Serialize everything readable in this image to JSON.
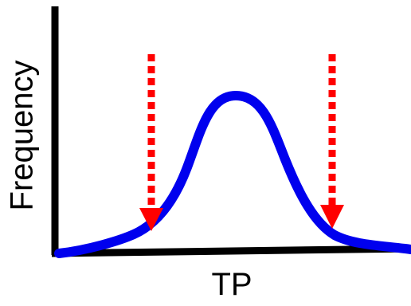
{
  "y_axis_label": "Frequency",
  "x_axis_label": "TP"
}
